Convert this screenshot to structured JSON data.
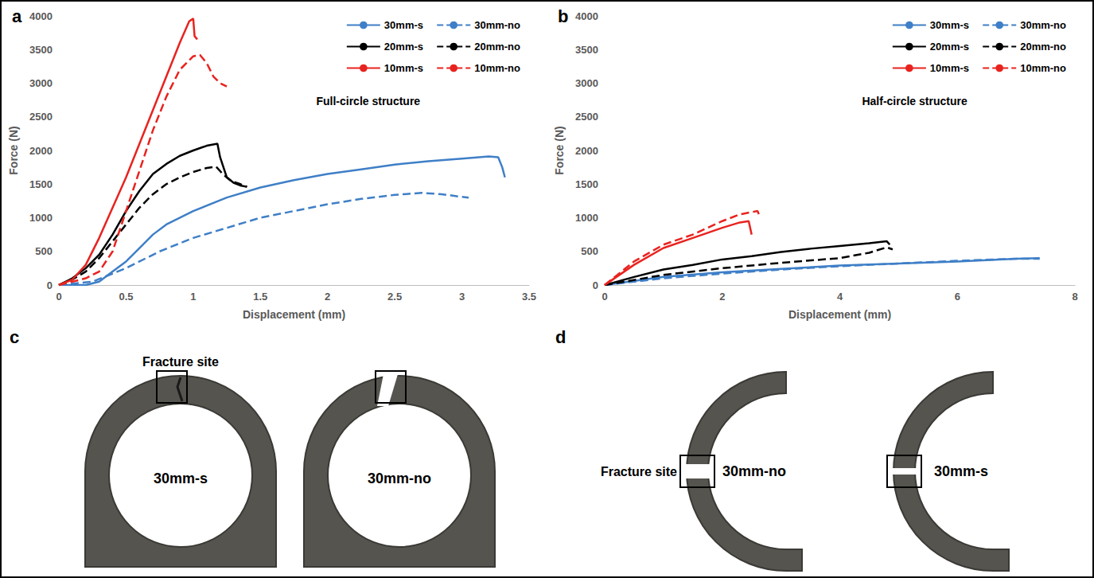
{
  "chart_data": [
    {
      "type": "line",
      "panel": "a",
      "annotation": "Full-circle structure",
      "x_label": "Displacement (mm)",
      "y_label": "Force (N)",
      "xlim": [
        0,
        3.5
      ],
      "xticks": [
        0,
        0.5,
        1,
        1.5,
        2,
        2.5,
        3,
        3.5
      ],
      "ylim": [
        0,
        4000
      ],
      "yticks": [
        0,
        500,
        1000,
        1500,
        2000,
        2500,
        3000,
        3500,
        4000
      ],
      "grid": false,
      "legend": "top-right",
      "series": [
        {
          "name": "30mm-s",
          "color": "#3f7fc7",
          "line_style": "solid",
          "x": [
            0,
            0.2,
            0.3,
            0.4,
            0.5,
            0.6,
            0.7,
            0.8,
            1.0,
            1.25,
            1.5,
            1.75,
            2.0,
            2.25,
            2.5,
            2.75,
            3.0,
            3.2,
            3.27,
            3.3,
            3.32
          ],
          "values": [
            0,
            0,
            50,
            200,
            350,
            550,
            750,
            900,
            1100,
            1300,
            1450,
            1560,
            1650,
            1720,
            1790,
            1840,
            1880,
            1910,
            1900,
            1750,
            1600
          ]
        },
        {
          "name": "30mm-no",
          "color": "#3f7fc7",
          "line_style": "dashed",
          "x": [
            0,
            0.25,
            0.5,
            0.75,
            1.0,
            1.25,
            1.5,
            1.75,
            2.0,
            2.25,
            2.5,
            2.7,
            2.85,
            3.0,
            3.05
          ],
          "values": [
            0,
            50,
            250,
            500,
            700,
            850,
            1000,
            1100,
            1200,
            1280,
            1340,
            1370,
            1350,
            1310,
            1300
          ]
        },
        {
          "name": "20mm-s",
          "color": "#000000",
          "line_style": "solid",
          "x": [
            0,
            0.1,
            0.2,
            0.3,
            0.4,
            0.5,
            0.6,
            0.7,
            0.8,
            0.9,
            1.0,
            1.1,
            1.18,
            1.2,
            1.25,
            1.3,
            1.35,
            1.4
          ],
          "values": [
            0,
            100,
            250,
            450,
            750,
            1100,
            1400,
            1650,
            1800,
            1920,
            2000,
            2070,
            2100,
            1900,
            1600,
            1520,
            1480,
            1460
          ]
        },
        {
          "name": "20mm-no",
          "color": "#000000",
          "line_style": "dashed",
          "x": [
            0,
            0.1,
            0.2,
            0.3,
            0.4,
            0.5,
            0.6,
            0.7,
            0.8,
            0.9,
            1.0,
            1.1,
            1.17,
            1.22,
            1.28,
            1.35,
            1.4
          ],
          "values": [
            0,
            80,
            200,
            400,
            650,
            900,
            1150,
            1350,
            1500,
            1600,
            1680,
            1740,
            1760,
            1650,
            1550,
            1500,
            1460
          ]
        },
        {
          "name": "10mm-s",
          "color": "#e8231f",
          "line_style": "solid",
          "x": [
            0,
            0.1,
            0.2,
            0.3,
            0.4,
            0.5,
            0.6,
            0.7,
            0.8,
            0.9,
            0.97,
            1.0,
            1.01,
            1.03
          ],
          "values": [
            0,
            80,
            300,
            700,
            1150,
            1600,
            2100,
            2600,
            3100,
            3600,
            3920,
            3960,
            3700,
            3650
          ]
        },
        {
          "name": "10mm-no",
          "color": "#e8231f",
          "line_style": "dashed",
          "x": [
            0,
            0.2,
            0.3,
            0.4,
            0.5,
            0.6,
            0.7,
            0.8,
            0.9,
            1.0,
            1.05,
            1.1,
            1.15,
            1.2,
            1.25
          ],
          "values": [
            0,
            100,
            200,
            500,
            1100,
            1700,
            2300,
            2800,
            3200,
            3400,
            3420,
            3300,
            3100,
            3000,
            2950
          ]
        }
      ]
    },
    {
      "type": "line",
      "panel": "b",
      "annotation": "Half-circle structure",
      "x_label": "Displacement (mm)",
      "y_label": "Force (N)",
      "xlim": [
        0,
        8
      ],
      "xticks": [
        0,
        2,
        4,
        6,
        8
      ],
      "ylim": [
        0,
        4000
      ],
      "yticks": [
        0,
        500,
        1000,
        1500,
        2000,
        2500,
        3000,
        3500,
        4000
      ],
      "grid": false,
      "legend": "top-right",
      "series": [
        {
          "name": "30mm-s",
          "color": "#3f7fc7",
          "line_style": "solid",
          "x": [
            0,
            1,
            2,
            3,
            4,
            5,
            6,
            7,
            7.4
          ],
          "values": [
            0,
            120,
            190,
            240,
            290,
            320,
            350,
            390,
            400
          ]
        },
        {
          "name": "30mm-no",
          "color": "#3f7fc7",
          "line_style": "dashed",
          "x": [
            0,
            1,
            2,
            3,
            4,
            5,
            6,
            7,
            7.4
          ],
          "values": [
            0,
            100,
            170,
            230,
            280,
            320,
            360,
            390,
            390
          ]
        },
        {
          "name": "20mm-s",
          "color": "#000000",
          "line_style": "solid",
          "x": [
            0,
            0.5,
            1,
            1.5,
            2,
            2.5,
            3,
            3.5,
            4,
            4.5,
            4.8,
            4.85
          ],
          "values": [
            0,
            120,
            230,
            300,
            380,
            430,
            490,
            540,
            580,
            620,
            650,
            600
          ]
        },
        {
          "name": "20mm-no",
          "color": "#000000",
          "line_style": "dashed",
          "x": [
            0,
            1,
            2,
            3,
            4,
            4.5,
            4.8,
            4.9
          ],
          "values": [
            0,
            150,
            250,
            330,
            400,
            480,
            560,
            530
          ]
        },
        {
          "name": "10mm-s",
          "color": "#e8231f",
          "line_style": "solid",
          "x": [
            0,
            0.5,
            1,
            1.5,
            2,
            2.3,
            2.45,
            2.5
          ],
          "values": [
            0,
            300,
            550,
            700,
            850,
            930,
            950,
            750
          ]
        },
        {
          "name": "10mm-no",
          "color": "#e8231f",
          "line_style": "dashed",
          "x": [
            0,
            0.5,
            1,
            1.5,
            2,
            2.3,
            2.6,
            2.65
          ],
          "values": [
            0,
            350,
            600,
            750,
            950,
            1050,
            1100,
            1000
          ]
        }
      ]
    }
  ],
  "photos": [
    {
      "panel": "c",
      "annotation": "Fracture site",
      "specimens": [
        "30mm-s",
        "30mm-no"
      ]
    },
    {
      "panel": "d",
      "annotation": "Fracture site",
      "specimens": [
        "30mm-no",
        "30mm-s"
      ]
    }
  ]
}
